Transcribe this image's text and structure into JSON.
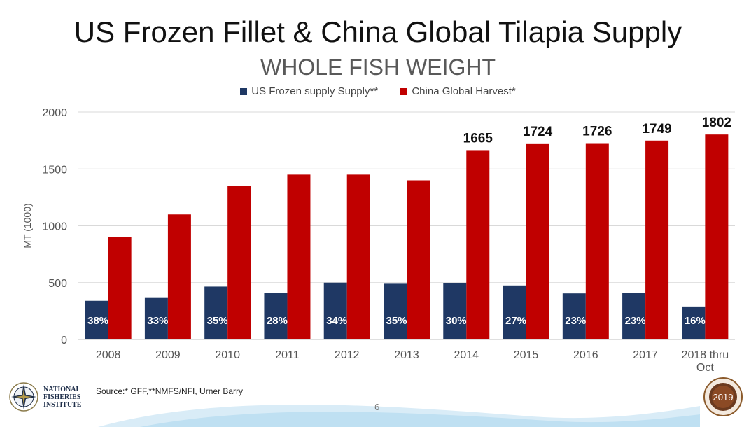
{
  "title": "US Frozen Fillet & China Global Tilapia Supply",
  "subtitle": "WHOLE FISH WEIGHT",
  "source": "Source:* GFF,**NMFS/NFI, Urner Barry",
  "page_number": "6",
  "logo_left": {
    "lines": [
      "NATIONAL",
      "FISHERIES",
      "INSTITUTE"
    ]
  },
  "logo_right": {
    "year": "2019"
  },
  "colors": {
    "us": "#1f3864",
    "china": "#c00000"
  },
  "chart_data": {
    "type": "bar",
    "categories": [
      "2008",
      "2009",
      "2010",
      "2011",
      "2012",
      "2013",
      "2014",
      "2015",
      "2016",
      "2017",
      "2018 thru Oct"
    ],
    "series": [
      {
        "name": "US Frozen supply Supply**",
        "values": [
          340,
          365,
          465,
          410,
          500,
          490,
          495,
          475,
          405,
          410,
          290
        ],
        "labels": [
          "38%",
          "33%",
          "35%",
          "28%",
          "34%",
          "35%",
          "30%",
          "27%",
          "23%",
          "23%",
          "16%"
        ]
      },
      {
        "name": "China Global Harvest*",
        "values": [
          900,
          1100,
          1350,
          1450,
          1450,
          1400,
          1665,
          1724,
          1726,
          1749,
          1802
        ],
        "labels": [
          "",
          "",
          "",
          "",
          "",
          "",
          "1665",
          "1724",
          "1726",
          "1749",
          "1802"
        ]
      }
    ],
    "ylabel": "MT (1000)",
    "ylim": [
      0,
      2000
    ],
    "yticks": [
      0,
      500,
      1000,
      1500,
      2000
    ],
    "grid": true,
    "legend": "top-center"
  }
}
